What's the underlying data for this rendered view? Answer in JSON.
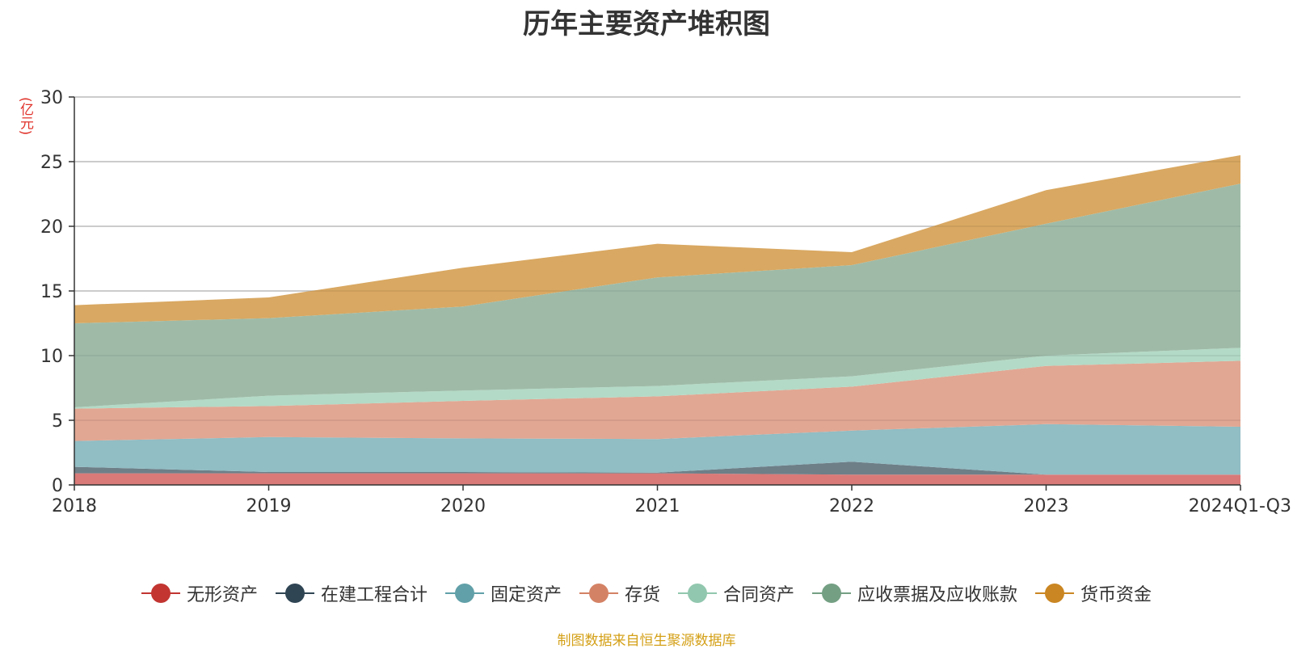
{
  "chart_data": {
    "type": "area",
    "stacked": true,
    "title": "历年主要资产堆积图",
    "y_unit": "(亿元)",
    "categories": [
      "2018",
      "2019",
      "2020",
      "2021",
      "2022",
      "2023",
      "2024Q1-Q3"
    ],
    "ylim": [
      0,
      30
    ],
    "y_ticks": [
      0,
      5,
      10,
      15,
      20,
      25,
      30
    ],
    "grid": true,
    "legend_position": "bottom",
    "series": [
      {
        "name": "无形资产",
        "color": "#c23531",
        "fill": "#d97a78",
        "values": [
          0.9,
          0.9,
          0.9,
          0.9,
          0.8,
          0.8,
          0.8
        ]
      },
      {
        "name": "在建工程合计",
        "color": "#2f4554",
        "fill": "#6e7f88",
        "values": [
          0.5,
          0.1,
          0.1,
          0.05,
          1.0,
          0.0,
          0.0
        ]
      },
      {
        "name": "固定资产",
        "color": "#61a0a8",
        "fill": "#91bdc4",
        "values": [
          2.0,
          2.7,
          2.6,
          2.6,
          2.4,
          3.9,
          3.7
        ]
      },
      {
        "name": "存货",
        "color": "#d48265",
        "fill": "#e1a793",
        "values": [
          2.5,
          2.4,
          2.9,
          3.3,
          3.4,
          4.5,
          5.1
        ]
      },
      {
        "name": "合同资产",
        "color": "#91c7ae",
        "fill": "#b3dac6",
        "values": [
          0.1,
          0.8,
          0.8,
          0.8,
          0.8,
          0.8,
          1.0
        ]
      },
      {
        "name": "应收票据及应收账款",
        "color": "#749f83",
        "fill": "#9fbba8",
        "values": [
          6.5,
          6.0,
          6.5,
          8.4,
          8.6,
          10.2,
          12.7
        ]
      },
      {
        "name": "货币资金",
        "color": "#ca8622",
        "fill": "#d9a862",
        "values": [
          1.4,
          1.6,
          3.0,
          2.6,
          1.0,
          2.6,
          2.2
        ]
      }
    ]
  },
  "source_note": "制图数据来自恒生聚源数据库"
}
